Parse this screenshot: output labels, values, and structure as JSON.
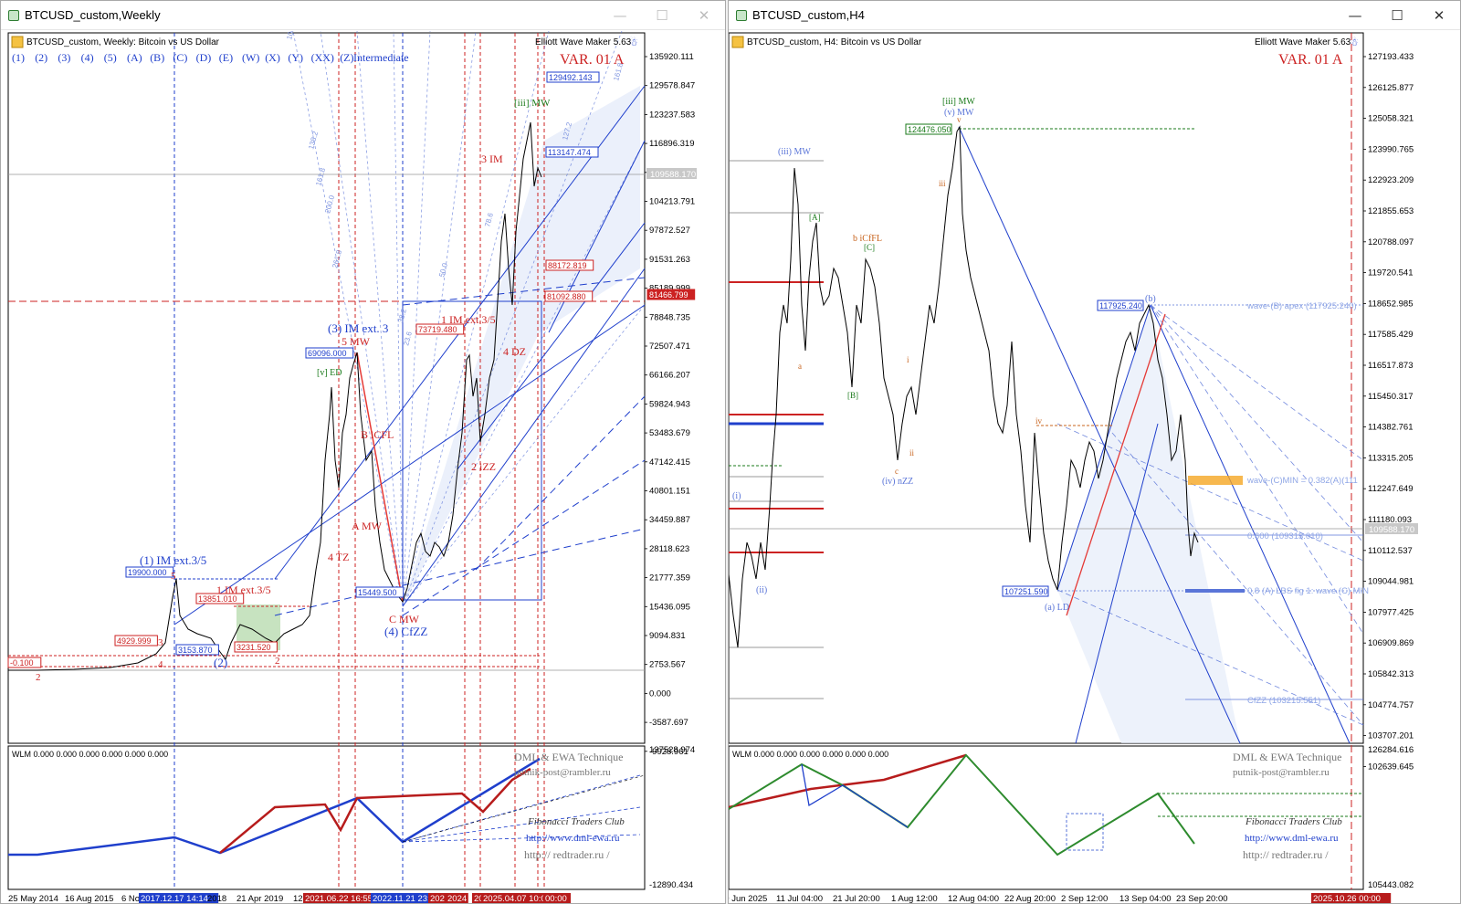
{
  "left": {
    "window_title": "BTCUSD_custom,Weekly",
    "chart_header": "BTCUSD_custom, Weekly:  Bitcoin vs US Dollar",
    "wave_buttons": [
      "(1)",
      "(2)",
      "(3)",
      "(4)",
      "(5)",
      "(A)",
      "(B)",
      "(C)",
      "(D)",
      "(E)",
      "(W)",
      "(X)",
      "(Y)",
      "(XX)",
      "(Z)"
    ],
    "degree_label": "Intermediate",
    "indicator_title": "Elliott Wave Maker 5.63",
    "variant": "VAR. 01 A",
    "price_scale": [
      "135920.111",
      "129578.847",
      "123237.583",
      "116896.319",
      "109588.170",
      "104213.791",
      "97872.527",
      "91531.263",
      "85189.999",
      "78848.735",
      "72507.471",
      "66166.207",
      "59824.943",
      "53483.679",
      "47142.415",
      "40801.151",
      "34459.887",
      "28118.623",
      "21777.359",
      "15436.095",
      "9094.831",
      "2753.567",
      "0.000",
      "-3587.697",
      "-9928.961"
    ],
    "current_price": "109588.170",
    "price_tags": [
      {
        "text": "129492.143",
        "color": "#1f3fcc"
      },
      {
        "text": "113147.474",
        "color": "#1f3fcc"
      },
      {
        "text": "88172.819",
        "color": "#cc2222"
      },
      {
        "text": "81092.880",
        "color": "#cc2222"
      },
      {
        "text": "81466.799",
        "color": "#cc2222"
      },
      {
        "text": "73719.480",
        "color": "#cc2222"
      },
      {
        "text": "69096.000",
        "color": "#1f3fcc"
      },
      {
        "text": "19900.000",
        "color": "#1f3fcc"
      },
      {
        "text": "13851.010",
        "color": "#cc2222"
      },
      {
        "text": "4929.999",
        "color": "#cc2222"
      },
      {
        "text": "3153.870",
        "color": "#1f3fcc"
      },
      {
        "text": "3231.520",
        "color": "#cc2222"
      },
      {
        "text": "15449.500",
        "color": "#1f3fcc"
      },
      {
        "text": "-0.100",
        "color": "#cc2222"
      }
    ],
    "wave_labels": {
      "w1": "(1) IM ext.3/5",
      "w2": "(2)",
      "w3": "(3) IM ext. 3",
      "w3b": "5 MW",
      "w4": "(4) CfZZ",
      "w4c": "C MW",
      "i1": "1 IM ext.3/5",
      "i1b": "1 IM ext.3/5",
      "i2": "2 iZZ",
      "i3": "3 IM",
      "i4": "4 DZ",
      "a": "A MW",
      "b": "B iCFL",
      "tz4": "4 TZ",
      "iii_mw": "[iii] MW",
      "ed": "[v] ED",
      "r2": "2",
      "r3": "3",
      "r4": "4",
      "r5": "5",
      "r2b": "2"
    },
    "fib_labels": [
      "100.0",
      "138.2",
      "161.8",
      "200.0",
      "261.8",
      "78.6",
      "50.0",
      "38.2",
      "23.6",
      "127.2",
      "161.8"
    ],
    "oscillator_header": "WLM 0.000 0.000 0.000 0.000 0.000 0.000",
    "osc_scale": [
      "137528.974",
      "-12890.434"
    ],
    "watermark": {
      "technique": "DML & EWA Technique",
      "email": "putnik-post@rambler.ru",
      "club": "Fibonacci   Traders   Club",
      "site1": "http://www.dml-ewa.ru",
      "site2": "http://  redtrader.ru  /"
    },
    "time_axis": [
      "25 May 2014",
      "16 Aug 2015",
      "6 No",
      "2017.12.17 14:14",
      "2018",
      "21 Apr 2019",
      "12",
      "2021.06.22 16:55",
      "2022.11.21 23:5",
      "202",
      "2024",
      "20",
      "2025.04.07 10:04",
      "00:00"
    ]
  },
  "right": {
    "window_title": "BTCUSD_custom,H4",
    "chart_header": "BTCUSD_custom, H4:  Bitcoin vs US Dollar",
    "indicator_title": "Elliott Wave Maker 5.63",
    "variant": "VAR. 01 A",
    "price_scale": [
      "127193.433",
      "126125.877",
      "125058.321",
      "123990.765",
      "122923.209",
      "121855.653",
      "120788.097",
      "119720.541",
      "118652.985",
      "117585.429",
      "116517.873",
      "115450.317",
      "114382.761",
      "113315.205",
      "112247.649",
      "111180.093",
      "110112.537",
      "109044.981",
      "107977.425",
      "106909.869",
      "105842.313",
      "104774.757",
      "103707.201",
      "102639.645"
    ],
    "current_price": "109588.170",
    "price_tags": [
      {
        "text": "124476.050",
        "color": "#1a7a1a"
      },
      {
        "text": "117925.240",
        "color": "#1f3fcc"
      },
      {
        "text": "107251.590",
        "color": "#1f3fcc"
      }
    ],
    "wave_labels": {
      "iii_mw": "(iii) MW",
      "iii_mw2": "[iii] MW",
      "v_mw": "(v) MW",
      "iv_nzz": "(iv) nZZ",
      "a_ld": "(a) LD",
      "b": "(b)",
      "b_icfl": "b iCfFL",
      "A": "[A]",
      "B": "[B]",
      "C": "[C]",
      "i": "(i)",
      "ii": "(ii)",
      "small_a": "a",
      "small_c": "c",
      "small_i": "i",
      "small_ii": "ii",
      "small_iii": "iii",
      "small_iv": "iv",
      "small_v": "v"
    },
    "annotations": {
      "apex": "wave-(B) apex (117925.240)",
      "cmin": "wave-(C)MIN = 0.382(A)(111",
      "fib600": "0.600 (109313.010)",
      "cfzz": "CfZZ (103215.551)",
      "overlap": "0.8 (A) LBS fig 1: wave (C) MIN"
    },
    "oscillator_header": "WLM 0.000 0.000 0.000 0.000 0.000 0.000",
    "osc_scale": [
      "126284.616",
      "105443.082"
    ],
    "watermark": {
      "technique": "DML & EWA Technique",
      "email": "putnik-post@rambler.ru",
      "club": "Fibonacci   Traders   Club",
      "site1": "http://www.dml-ewa.ru",
      "site2": "http://  redtrader.ru  /"
    },
    "time_axis": [
      "30 Jun 2025",
      "11 Jul 04:00",
      "21 Jul 20:00",
      "1 Aug 12:00",
      "12 Aug 04:00",
      "22 Aug 20:00",
      "2 Sep 12:00",
      "13 Sep 04:00",
      "23 Sep 20:00",
      "2025.10.26 00:00"
    ]
  },
  "colors": {
    "bull": "#1f3fcc",
    "bear": "#b71c1c",
    "wave_green": "#1a7a1a",
    "orange": "#c8641e",
    "channel_fill": "#e6ecfa"
  }
}
